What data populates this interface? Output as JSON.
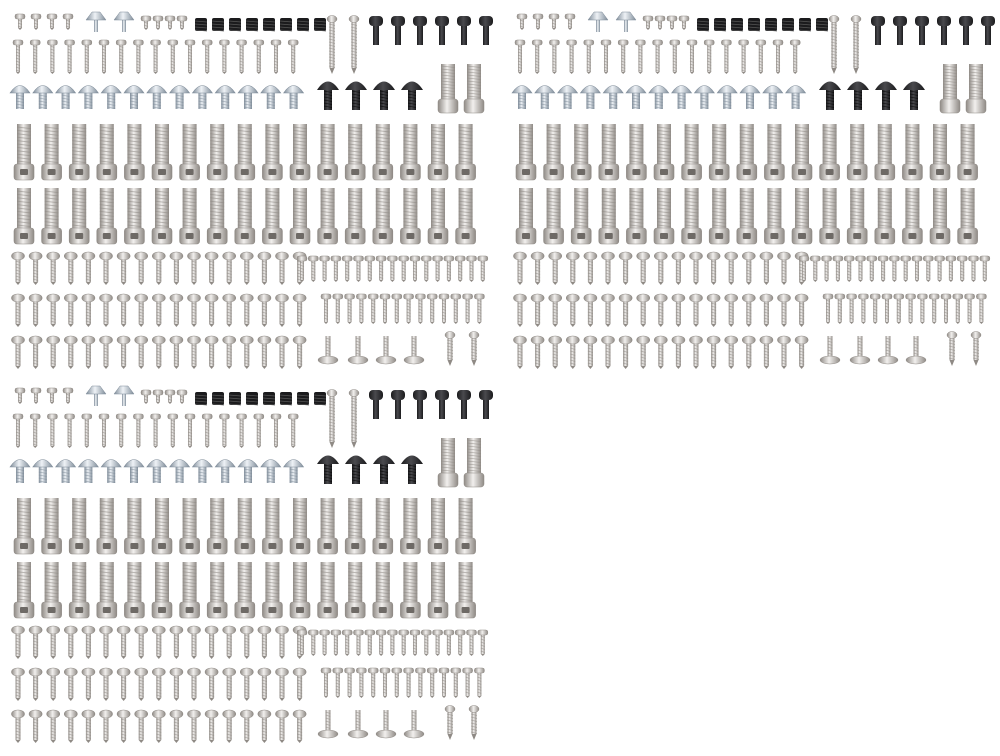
{
  "image": {
    "subject": "screw-assortment",
    "panel_count": 3,
    "colors": {
      "background": "#ffffff",
      "silver": "#c9c6c2",
      "silver_dark": "#8f8a85",
      "steel": "#b4b0ab",
      "blue_steel": "#aeb9c4",
      "black": "#1b1b1d",
      "black_hi": "#4a4a4e"
    }
  }
}
